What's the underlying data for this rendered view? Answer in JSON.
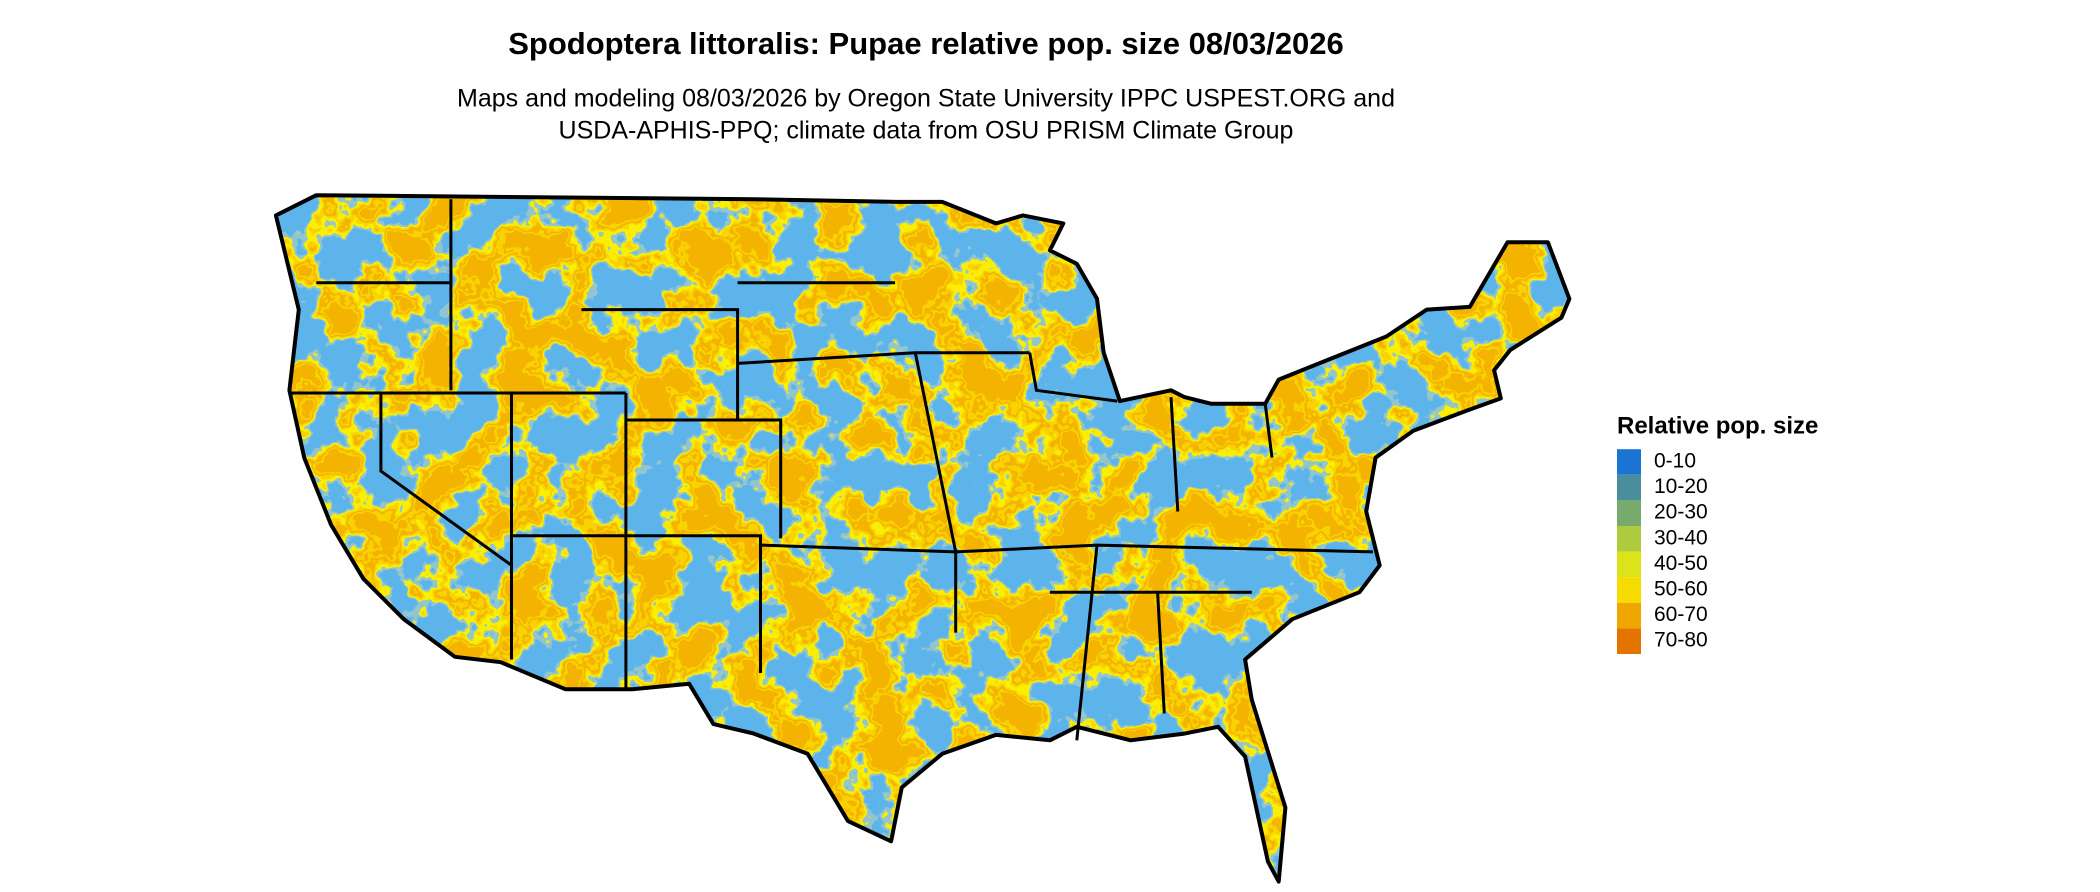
{
  "title": "Spodoptera littoralis: Pupae relative pop. size 08/03/2026",
  "subtitle": [
    "Maps and modeling 08/03/2026 by Oregon State University IPPC USPEST.ORG and",
    "USDA-APHIS-PPQ; climate data from OSU PRISM Climate Group"
  ],
  "legend": {
    "title": "Relative pop. size",
    "items": [
      {
        "label": "0-10",
        "color": "#1b74d3"
      },
      {
        "label": "10-20",
        "color": "#4a8e9e"
      },
      {
        "label": "20-30",
        "color": "#79aa6d"
      },
      {
        "label": "30-40",
        "color": "#aecb3e"
      },
      {
        "label": "40-50",
        "color": "#dde31b"
      },
      {
        "label": "50-60",
        "color": "#f6dc00"
      },
      {
        "label": "60-70",
        "color": "#f0a600"
      },
      {
        "label": "70-80",
        "color": "#e57300"
      }
    ]
  }
}
